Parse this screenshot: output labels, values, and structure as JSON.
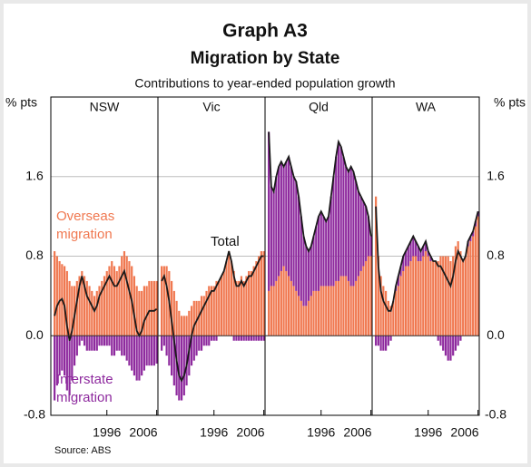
{
  "chart_data": {
    "type": "bar",
    "title": "Graph A3",
    "subtitle": "Migration by State",
    "description": "Contributions to year-ended population growth",
    "ylabel": "% pts",
    "source": "Source: ABS",
    "xlim": [
      1984.75,
      2006.25
    ],
    "xticks": [
      1996,
      2006
    ],
    "ylim": [
      -0.8,
      2.4
    ],
    "yticks": [
      -0.8,
      {
        "value": 0,
        "label": "0.0"
      },
      0.8,
      1.6
    ],
    "grid": true,
    "series_info": [
      {
        "name": "Overseas migration",
        "color": "#f07850",
        "kind": "bar"
      },
      {
        "name": "Interstate migration",
        "color": "#8e2a9e",
        "kind": "bar"
      },
      {
        "name": "Total",
        "color": "#1a1a1a",
        "kind": "line"
      }
    ],
    "x": [
      1985.5,
      1986,
      1986.5,
      1987,
      1987.5,
      1988,
      1988.5,
      1989,
      1989.5,
      1990,
      1990.5,
      1991,
      1991.5,
      1992,
      1992.5,
      1993,
      1993.5,
      1994,
      1994.5,
      1995,
      1995.5,
      1996,
      1996.5,
      1997,
      1997.5,
      1998,
      1998.5,
      1999,
      1999.5,
      2000,
      2000.5,
      2001,
      2001.5,
      2002,
      2002.5,
      2003,
      2003.5,
      2004,
      2004.5,
      2005,
      2005.5,
      2006
    ],
    "panels": [
      {
        "name": "NSW",
        "series": [
          {
            "values": [
              0.85,
              0.8,
              0.75,
              0.72,
              0.7,
              0.65,
              0.55,
              0.5,
              0.5,
              0.55,
              0.6,
              0.65,
              0.6,
              0.55,
              0.5,
              0.45,
              0.4,
              0.45,
              0.5,
              0.55,
              0.6,
              0.65,
              0.7,
              0.75,
              0.7,
              0.65,
              0.7,
              0.8,
              0.85,
              0.8,
              0.75,
              0.7,
              0.6,
              0.5,
              0.45,
              0.45,
              0.5,
              0.5,
              0.55,
              0.55,
              0.55,
              0.55
            ]
          },
          {
            "values": [
              -0.65,
              -0.5,
              -0.4,
              -0.35,
              -0.4,
              -0.55,
              -0.6,
              -0.45,
              -0.3,
              -0.2,
              -0.1,
              -0.05,
              -0.1,
              -0.15,
              -0.15,
              -0.15,
              -0.15,
              -0.15,
              -0.1,
              -0.1,
              -0.1,
              -0.1,
              -0.1,
              -0.2,
              -0.2,
              -0.15,
              -0.15,
              -0.2,
              -0.2,
              -0.25,
              -0.3,
              -0.35,
              -0.4,
              -0.45,
              -0.45,
              -0.4,
              -0.35,
              -0.3,
              -0.3,
              -0.3,
              -0.3,
              -0.28
            ]
          },
          {
            "values": [
              0.2,
              0.3,
              0.35,
              0.37,
              0.3,
              0.1,
              -0.05,
              0.05,
              0.2,
              0.35,
              0.5,
              0.6,
              0.5,
              0.4,
              0.35,
              0.3,
              0.25,
              0.3,
              0.4,
              0.45,
              0.5,
              0.55,
              0.6,
              0.55,
              0.5,
              0.5,
              0.55,
              0.6,
              0.65,
              0.55,
              0.45,
              0.35,
              0.2,
              0.05,
              0,
              0.05,
              0.15,
              0.2,
              0.25,
              0.25,
              0.25,
              0.27
            ]
          }
        ]
      },
      {
        "name": "Vic",
        "series": [
          {
            "values": [
              0.7,
              0.7,
              0.7,
              0.65,
              0.55,
              0.45,
              0.35,
              0.25,
              0.2,
              0.2,
              0.2,
              0.25,
              0.3,
              0.35,
              0.35,
              0.35,
              0.4,
              0.4,
              0.45,
              0.5,
              0.5,
              0.5,
              0.55,
              0.55,
              0.6,
              0.65,
              0.75,
              0.85,
              0.75,
              0.65,
              0.55,
              0.55,
              0.6,
              0.55,
              0.6,
              0.65,
              0.65,
              0.7,
              0.75,
              0.8,
              0.85,
              0.85
            ]
          },
          {
            "values": [
              -0.15,
              -0.1,
              -0.2,
              -0.3,
              -0.4,
              -0.5,
              -0.6,
              -0.65,
              -0.65,
              -0.6,
              -0.5,
              -0.4,
              -0.3,
              -0.25,
              -0.2,
              -0.15,
              -0.15,
              -0.1,
              -0.1,
              -0.1,
              -0.05,
              -0.05,
              -0.05,
              0,
              0,
              0,
              0,
              0,
              0,
              -0.05,
              -0.05,
              -0.05,
              -0.05,
              -0.05,
              -0.05,
              -0.05,
              -0.05,
              -0.05,
              -0.05,
              -0.05,
              -0.05,
              -0.05
            ]
          },
          {
            "values": [
              0.55,
              0.6,
              0.5,
              0.35,
              0.15,
              -0.05,
              -0.25,
              -0.4,
              -0.45,
              -0.4,
              -0.3,
              -0.15,
              0,
              0.1,
              0.15,
              0.2,
              0.25,
              0.3,
              0.35,
              0.4,
              0.45,
              0.45,
              0.5,
              0.55,
              0.6,
              0.65,
              0.75,
              0.85,
              0.75,
              0.6,
              0.5,
              0.5,
              0.55,
              0.5,
              0.55,
              0.6,
              0.6,
              0.65,
              0.7,
              0.75,
              0.8,
              0.8
            ]
          }
        ]
      },
      {
        "name": "Qld",
        "series": [
          {
            "values": [
              0.45,
              0.5,
              0.5,
              0.55,
              0.6,
              0.65,
              0.7,
              0.65,
              0.6,
              0.55,
              0.5,
              0.45,
              0.4,
              0.35,
              0.3,
              0.3,
              0.35,
              0.4,
              0.45,
              0.45,
              0.45,
              0.5,
              0.5,
              0.5,
              0.5,
              0.5,
              0.5,
              0.55,
              0.55,
              0.6,
              0.6,
              0.6,
              0.55,
              0.5,
              0.5,
              0.55,
              0.6,
              0.65,
              0.7,
              0.75,
              0.8,
              0.8
            ]
          },
          {
            "values": [
              1.6,
              1.0,
              0.95,
              1.05,
              1.1,
              1.1,
              1.0,
              1.1,
              1.2,
              1.15,
              1.1,
              1.1,
              1.0,
              0.85,
              0.7,
              0.6,
              0.5,
              0.5,
              0.55,
              0.65,
              0.75,
              0.75,
              0.7,
              0.65,
              0.7,
              0.9,
              1.1,
              1.25,
              1.4,
              1.3,
              1.2,
              1.1,
              1.1,
              1.2,
              1.15,
              1.0,
              0.85,
              0.75,
              0.65,
              0.55,
              0.4,
              0.2
            ]
          },
          {
            "values": [
              2.05,
              1.5,
              1.45,
              1.6,
              1.7,
              1.75,
              1.7,
              1.75,
              1.8,
              1.7,
              1.6,
              1.55,
              1.4,
              1.2,
              1.0,
              0.9,
              0.85,
              0.9,
              1.0,
              1.1,
              1.2,
              1.25,
              1.2,
              1.15,
              1.2,
              1.4,
              1.6,
              1.8,
              1.95,
              1.9,
              1.8,
              1.7,
              1.65,
              1.7,
              1.65,
              1.55,
              1.45,
              1.4,
              1.35,
              1.3,
              1.2,
              1.0
            ]
          }
        ]
      },
      {
        "name": "WA",
        "series": [
          {
            "values": [
              1.4,
              0.8,
              0.6,
              0.5,
              0.45,
              0.35,
              0.3,
              0.35,
              0.45,
              0.5,
              0.6,
              0.65,
              0.7,
              0.7,
              0.75,
              0.8,
              0.8,
              0.75,
              0.75,
              0.8,
              0.85,
              0.8,
              0.75,
              0.75,
              0.75,
              0.75,
              0.8,
              0.8,
              0.8,
              0.8,
              0.75,
              0.8,
              0.9,
              0.95,
              0.85,
              0.75,
              0.8,
              0.9,
              0.95,
              1.0,
              1.1,
              1.2
            ]
          },
          {
            "values": [
              -0.1,
              -0.1,
              -0.15,
              -0.15,
              -0.15,
              -0.1,
              -0.05,
              0,
              0.05,
              0.1,
              0.1,
              0.15,
              0.15,
              0.2,
              0.2,
              0.2,
              0.15,
              0.15,
              0.1,
              0.1,
              0.1,
              0.05,
              0.05,
              0,
              0,
              -0.05,
              -0.1,
              -0.15,
              -0.2,
              -0.25,
              -0.25,
              -0.2,
              -0.15,
              -0.1,
              -0.05,
              0,
              0,
              0.05,
              0.05,
              0.05,
              0.05,
              0.05
            ]
          },
          {
            "values": [
              1.3,
              0.7,
              0.45,
              0.35,
              0.3,
              0.25,
              0.25,
              0.35,
              0.5,
              0.6,
              0.7,
              0.8,
              0.85,
              0.9,
              0.95,
              1.0,
              0.95,
              0.9,
              0.85,
              0.9,
              0.95,
              0.85,
              0.8,
              0.75,
              0.75,
              0.7,
              0.7,
              0.65,
              0.6,
              0.55,
              0.5,
              0.6,
              0.75,
              0.85,
              0.8,
              0.75,
              0.8,
              0.95,
              1.0,
              1.05,
              1.15,
              1.25
            ]
          }
        ]
      }
    ]
  }
}
